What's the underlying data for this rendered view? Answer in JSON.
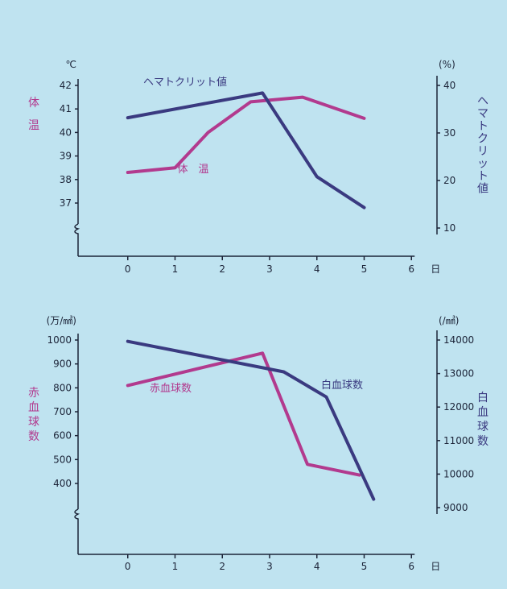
{
  "chart_data": [
    {
      "type": "line",
      "x_ticks": [
        "0",
        "1",
        "2",
        "3",
        "4",
        "5",
        "6"
      ],
      "x_unit": "日",
      "xlim": [
        -1,
        7
      ],
      "left_axis": {
        "unit": "℃",
        "ticks": [
          "37",
          "38",
          "39",
          "40",
          "41",
          "42"
        ],
        "ylim": [
          36,
          42.7
        ],
        "label_chars": [
          "体",
          "温"
        ],
        "color": "#b23a8e"
      },
      "right_axis": {
        "unit": "(%)",
        "ticks": [
          "10",
          "20",
          "30",
          "40"
        ],
        "ylim": [
          0,
          43.1
        ],
        "label_chars": [
          "ヘ",
          "マ",
          "ト",
          "ク",
          "リ",
          "ッ",
          "ト",
          "値"
        ],
        "color": "#3a3a80"
      },
      "series": [
        {
          "name": "体　温",
          "axis": "left",
          "color": "#b23a8e",
          "x": [
            0,
            1,
            1.7,
            2.6,
            3.7,
            5
          ],
          "values": [
            38.3,
            38.5,
            40.0,
            41.3,
            41.5,
            40.6
          ]
        },
        {
          "name": "ヘマトクリット値",
          "axis": "right",
          "color": "#3a3a80",
          "x": [
            0,
            2.85,
            4,
            5
          ],
          "values": [
            33.2,
            38.4,
            20.8,
            14.3
          ]
        }
      ]
    },
    {
      "type": "line",
      "x_ticks": [
        "0",
        "1",
        "2",
        "3",
        "4",
        "5",
        "6"
      ],
      "x_unit": "日",
      "xlim": [
        -1,
        7
      ],
      "left_axis": {
        "unit": "(万/㎣)",
        "ticks": [
          "400",
          "500",
          "600",
          "700",
          "800",
          "900",
          "1000"
        ],
        "ylim": [
          240,
          1060
        ],
        "label_chars": [
          "赤",
          "血",
          "球",
          "数"
        ],
        "color": "#b23a8e"
      },
      "right_axis": {
        "unit": "(/㎣)",
        "ticks": [
          "9000",
          "10000",
          "11000",
          "12000",
          "13000",
          "14000"
        ],
        "ylim": [
          8200,
          14400
        ],
        "label_chars": [
          "白",
          "血",
          "球",
          "数"
        ],
        "color": "#3a3a80"
      },
      "series": [
        {
          "name": "赤血球数",
          "axis": "left",
          "color": "#b23a8e",
          "x": [
            0,
            2.85,
            3.8,
            4.9
          ],
          "values": [
            810,
            945,
            480,
            435
          ]
        },
        {
          "name": "白血球数",
          "axis": "right",
          "color": "#3a3a80",
          "x": [
            0,
            3.3,
            4.2,
            5.2
          ],
          "values": [
            13960,
            13050,
            12300,
            9250
          ]
        }
      ]
    }
  ]
}
